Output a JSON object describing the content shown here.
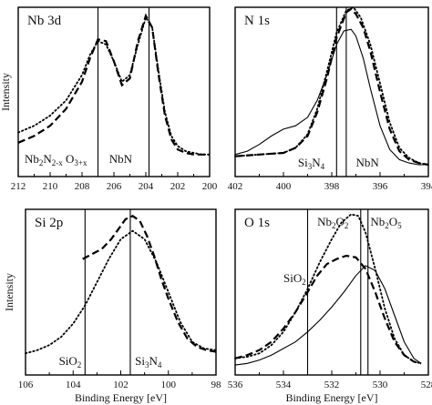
{
  "chart_data": [
    {
      "type": "line",
      "title": "Nb 3d",
      "ylabel": "Intensity",
      "xlabel": "",
      "xlim": [
        212,
        200
      ],
      "ylim": [
        0,
        1
      ],
      "x_ticks": [
        "212",
        "210",
        "208",
        "206",
        "204",
        "202",
        "200"
      ],
      "grid": false,
      "vlines": [
        207.0,
        203.8
      ],
      "annotations": [
        {
          "parts": [
            {
              "t": "Nb"
            },
            {
              "t": "2",
              "sub": true
            },
            {
              "t": "N"
            },
            {
              "t": "2-x",
              "sub": true
            },
            {
              "t": " O"
            },
            {
              "t": "3+x",
              "sub": true
            }
          ],
          "x": 211.6,
          "y": 0.08
        },
        {
          "parts": [
            {
              "t": "NbN"
            }
          ],
          "x": 206.3,
          "y": 0.08
        }
      ],
      "series": [
        {
          "style": "dotted",
          "x": [
            212,
            211,
            210,
            209,
            208,
            207.5,
            207,
            206.5,
            206,
            205.5,
            205,
            204.5,
            204,
            203.6,
            203.2,
            202.8,
            202.4,
            202,
            201.5,
            201,
            200.5,
            200
          ],
          "y": [
            0.26,
            0.3,
            0.36,
            0.45,
            0.6,
            0.72,
            0.8,
            0.78,
            0.68,
            0.56,
            0.6,
            0.78,
            0.94,
            0.88,
            0.62,
            0.38,
            0.24,
            0.18,
            0.15,
            0.14,
            0.13,
            0.13
          ]
        },
        {
          "style": "dashed",
          "x": [
            212,
            211,
            210,
            209,
            208,
            207.5,
            207,
            206.5,
            206,
            205.5,
            205,
            204.5,
            204,
            203.6,
            203.2,
            202.8,
            202.4,
            202,
            201.5,
            201,
            200.5,
            200
          ],
          "y": [
            0.2,
            0.24,
            0.3,
            0.4,
            0.56,
            0.7,
            0.81,
            0.8,
            0.68,
            0.54,
            0.58,
            0.8,
            0.95,
            0.88,
            0.6,
            0.36,
            0.22,
            0.16,
            0.14,
            0.13,
            0.13,
            0.13
          ]
        }
      ]
    },
    {
      "type": "line",
      "title": "N 1s",
      "ylabel": "",
      "xlabel": "",
      "xlim": [
        402,
        394
      ],
      "ylim": [
        0,
        1
      ],
      "x_ticks": [
        "402",
        "400",
        "398",
        "396",
        "394"
      ],
      "grid": false,
      "vlines": [
        397.8,
        397.4
      ],
      "annotations": [
        {
          "parts": [
            {
              "t": "Si"
            },
            {
              "t": "3",
              "sub": true
            },
            {
              "t": "N"
            },
            {
              "t": "4",
              "sub": true
            }
          ],
          "x": 399.4,
          "y": 0.06
        },
        {
          "parts": [
            {
              "t": "NbN"
            }
          ],
          "x": 397.0,
          "y": 0.06
        }
      ],
      "series": [
        {
          "style": "solid",
          "x": [
            402,
            401.5,
            401,
            400.5,
            400,
            399.5,
            399,
            398.6,
            398.2,
            397.8,
            397.5,
            397.2,
            397,
            396.7,
            396.4,
            396,
            395.6,
            395.2,
            394.8,
            394.4,
            394
          ],
          "y": [
            0.13,
            0.15,
            0.19,
            0.24,
            0.28,
            0.3,
            0.35,
            0.45,
            0.6,
            0.78,
            0.86,
            0.87,
            0.83,
            0.7,
            0.52,
            0.3,
            0.16,
            0.1,
            0.08,
            0.07,
            0.07
          ]
        },
        {
          "style": "dashed",
          "x": [
            402,
            401,
            400,
            399.5,
            399,
            398.6,
            398.2,
            397.8,
            397.4,
            397.2,
            397,
            396.7,
            396.4,
            396,
            395.6,
            395.2,
            394.8,
            394.4,
            394
          ],
          "y": [
            0.12,
            0.13,
            0.14,
            0.17,
            0.24,
            0.38,
            0.58,
            0.82,
            0.97,
            0.99,
            0.96,
            0.88,
            0.74,
            0.5,
            0.28,
            0.15,
            0.1,
            0.08,
            0.07
          ]
        },
        {
          "style": "dotted",
          "x": [
            402,
            401,
            400,
            399.5,
            399,
            398.6,
            398.2,
            397.8,
            397.4,
            397.1,
            396.8,
            396.4,
            396,
            395.6,
            395.2,
            394.8,
            394.4,
            394
          ],
          "y": [
            0.12,
            0.13,
            0.14,
            0.17,
            0.25,
            0.4,
            0.62,
            0.85,
            0.98,
            1.0,
            0.94,
            0.78,
            0.55,
            0.32,
            0.17,
            0.11,
            0.08,
            0.07
          ]
        }
      ]
    },
    {
      "type": "line",
      "title": "Si 2p",
      "ylabel": "Intensity",
      "xlabel": "Binding Energy [eV]",
      "xlim": [
        106,
        98
      ],
      "ylim": [
        0,
        1
      ],
      "x_ticks": [
        "106",
        "104",
        "102",
        "100",
        "98"
      ],
      "grid": false,
      "vlines": [
        103.5,
        101.6
      ],
      "annotations": [
        {
          "parts": [
            {
              "t": "SiO"
            },
            {
              "t": "2",
              "sub": true
            }
          ],
          "x": 104.6,
          "y": 0.06
        },
        {
          "parts": [
            {
              "t": "Si"
            },
            {
              "t": "3",
              "sub": true
            },
            {
              "t": "N"
            },
            {
              "t": "4",
              "sub": true
            }
          ],
          "x": 101.4,
          "y": 0.06
        }
      ],
      "series": [
        {
          "style": "dotted",
          "x": [
            106,
            105.5,
            105,
            104.5,
            104,
            103.5,
            103,
            102.5,
            102,
            101.5,
            101,
            100.5,
            100,
            99.5,
            99,
            98.5,
            98
          ],
          "y": [
            0.13,
            0.15,
            0.18,
            0.23,
            0.31,
            0.42,
            0.56,
            0.7,
            0.82,
            0.87,
            0.82,
            0.68,
            0.5,
            0.32,
            0.2,
            0.16,
            0.15
          ]
        },
        {
          "style": "dashed",
          "x": [
            103.6,
            103.2,
            102.8,
            102.4,
            102,
            101.8,
            101.5,
            101.2,
            100.9,
            100.6,
            100.3,
            100,
            99.6,
            99.2,
            98.8,
            98.4,
            98
          ],
          "y": [
            0.7,
            0.73,
            0.76,
            0.82,
            0.9,
            0.94,
            0.96,
            0.93,
            0.84,
            0.72,
            0.58,
            0.46,
            0.32,
            0.22,
            0.17,
            0.15,
            0.14
          ]
        }
      ]
    },
    {
      "type": "line",
      "title": "O 1s",
      "ylabel": "",
      "xlabel": "Binding Energy [eV]",
      "xlim": [
        536,
        528
      ],
      "ylim": [
        0,
        1
      ],
      "x_ticks": [
        "536",
        "534",
        "532",
        "530",
        "528"
      ],
      "grid": false,
      "vlines": [
        533.0,
        530.8,
        530.5
      ],
      "annotations": [
        {
          "parts": [
            {
              "t": "SiO"
            },
            {
              "t": "2",
              "sub": true
            }
          ],
          "x": 534.0,
          "y": 0.56
        },
        {
          "parts": [
            {
              "t": "Nb"
            },
            {
              "t": "2",
              "sub": true
            },
            {
              "t": "O"
            },
            {
              "t": "2",
              "sub": true
            }
          ],
          "x": 532.6,
          "y": 0.9
        },
        {
          "parts": [
            {
              "t": "Nb"
            },
            {
              "t": "2",
              "sub": true
            },
            {
              "t": "O"
            },
            {
              "t": "5",
              "sub": true
            }
          ],
          "x": 530.4,
          "y": 0.9
        }
      ],
      "series": [
        {
          "style": "solid",
          "x": [
            536,
            535.5,
            535,
            534.5,
            534,
            533.5,
            533,
            532.5,
            532,
            531.5,
            531,
            530.6,
            530.2,
            529.8,
            529.4,
            529,
            528.6,
            528.3
          ],
          "y": [
            0.06,
            0.07,
            0.09,
            0.12,
            0.16,
            0.2,
            0.26,
            0.33,
            0.41,
            0.5,
            0.6,
            0.66,
            0.63,
            0.52,
            0.36,
            0.2,
            0.1,
            0.07
          ]
        },
        {
          "style": "dashed",
          "x": [
            536,
            535.5,
            535,
            534.5,
            534,
            533.5,
            533,
            532.6,
            532.2,
            531.8,
            531.4,
            531,
            530.6,
            530.2,
            529.8,
            529.4,
            529,
            528.6,
            528.3
          ],
          "y": [
            0.1,
            0.12,
            0.15,
            0.2,
            0.28,
            0.38,
            0.5,
            0.6,
            0.67,
            0.7,
            0.72,
            0.71,
            0.64,
            0.5,
            0.34,
            0.2,
            0.12,
            0.08,
            0.07
          ]
        },
        {
          "style": "dotted",
          "x": [
            536,
            535.5,
            535,
            534.5,
            534,
            533.5,
            533,
            532.5,
            532,
            531.6,
            531.2,
            530.9,
            530.6,
            530.2,
            529.8,
            529.4,
            529,
            528.6,
            528.3
          ],
          "y": [
            0.1,
            0.11,
            0.13,
            0.18,
            0.26,
            0.38,
            0.52,
            0.68,
            0.82,
            0.92,
            0.97,
            0.96,
            0.86,
            0.64,
            0.4,
            0.22,
            0.12,
            0.08,
            0.07
          ]
        }
      ]
    }
  ]
}
